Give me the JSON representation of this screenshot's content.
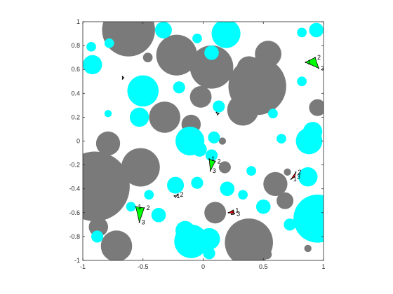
{
  "chart_data": {
    "type": "scatter",
    "title": "",
    "xlabel": "",
    "ylabel": "",
    "xlim": [
      -1,
      1
    ],
    "ylim": [
      -1,
      1
    ],
    "xticks": [
      -1,
      -0.5,
      0,
      0.5,
      1
    ],
    "yticks": [
      -1,
      -0.8,
      -0.6,
      -0.4,
      -0.2,
      0,
      0.2,
      0.4,
      0.6,
      0.8,
      1
    ],
    "xtick_labels": [
      "-1",
      "-0.5",
      "0",
      "0.5",
      "1"
    ],
    "ytick_labels": [
      "-1",
      "-0.8",
      "-0.6",
      "-0.4",
      "-0.2",
      "0",
      "0.2",
      "0.4",
      "0.6",
      "0.8",
      "1"
    ],
    "grid": false,
    "colors": {
      "gray_disk": "#7a7a7a",
      "cyan_disk": "#00ffff",
      "green_triangle": "#00ff00",
      "red_triangle": "#ff0000",
      "axis": "#262626"
    },
    "series": [
      {
        "marker": "gray-disk",
        "points": [
          {
            "x": -0.62,
            "y": 0.93,
            "r": 0.22
          },
          {
            "x": -0.22,
            "y": 0.72,
            "r": 0.17
          },
          {
            "x": 0.07,
            "y": 0.62,
            "r": 0.18
          },
          {
            "x": 0.45,
            "y": 0.46,
            "r": 0.24
          },
          {
            "x": 0.54,
            "y": 0.73,
            "r": 0.11
          },
          {
            "x": 0.38,
            "y": 0.61,
            "r": 0.1
          },
          {
            "x": 0.33,
            "y": 0.26,
            "r": 0.13
          },
          {
            "x": -0.32,
            "y": 0.2,
            "r": 0.13
          },
          {
            "x": -0.1,
            "y": 0.14,
            "r": 0.08
          },
          {
            "x": -0.02,
            "y": 0.37,
            "r": 0.09
          },
          {
            "x": -0.52,
            "y": -0.22,
            "r": 0.16
          },
          {
            "x": -0.9,
            "y": -0.38,
            "r": 0.29
          },
          {
            "x": -0.79,
            "y": -0.02,
            "r": 0.1
          },
          {
            "x": -0.87,
            "y": -0.72,
            "r": 0.08
          },
          {
            "x": -0.72,
            "y": -0.88,
            "r": 0.13
          },
          {
            "x": 0.1,
            "y": -0.6,
            "r": 0.09
          },
          {
            "x": 0.38,
            "y": -0.85,
            "r": 0.2
          },
          {
            "x": 0.6,
            "y": -0.36,
            "r": 0.1
          },
          {
            "x": 0.68,
            "y": -0.5,
            "r": 0.07
          },
          {
            "x": 0.18,
            "y": -0.22,
            "r": 0.05
          },
          {
            "x": 0.95,
            "y": 0.28,
            "r": 0.07
          },
          {
            "x": -0.46,
            "y": 0.7,
            "r": 0.04
          },
          {
            "x": 0.16,
            "y": 0.0,
            "r": 0.03
          },
          {
            "x": 0.7,
            "y": -0.26,
            "r": 0.03
          },
          {
            "x": 0.53,
            "y": -0.95,
            "r": 0.04
          },
          {
            "x": 0.87,
            "y": -0.9,
            "r": 0.03
          }
        ]
      },
      {
        "marker": "cyan-disk",
        "points": [
          {
            "x": -0.5,
            "y": 0.42,
            "r": 0.13
          },
          {
            "x": 0.19,
            "y": 0.9,
            "r": 0.12
          },
          {
            "x": 0.07,
            "y": 0.74,
            "r": 0.06
          },
          {
            "x": -0.92,
            "y": 0.64,
            "r": 0.08
          },
          {
            "x": -0.33,
            "y": 0.93,
            "r": 0.07
          },
          {
            "x": -0.05,
            "y": 0.86,
            "r": 0.04
          },
          {
            "x": 0.94,
            "y": 0.93,
            "r": 0.06
          },
          {
            "x": 0.82,
            "y": 0.91,
            "r": 0.04
          },
          {
            "x": -0.78,
            "y": 0.82,
            "r": 0.04
          },
          {
            "x": -0.53,
            "y": 0.2,
            "r": 0.08
          },
          {
            "x": -0.11,
            "y": 0.0,
            "r": 0.12
          },
          {
            "x": 0.13,
            "y": 0.29,
            "r": 0.05
          },
          {
            "x": -0.03,
            "y": -0.07,
            "r": 0.06
          },
          {
            "x": 0.07,
            "y": -0.12,
            "r": 0.05
          },
          {
            "x": 0.09,
            "y": 0.03,
            "r": 0.05
          },
          {
            "x": -0.23,
            "y": -0.37,
            "r": 0.07
          },
          {
            "x": -0.05,
            "y": -0.35,
            "r": 0.05
          },
          {
            "x": 0.2,
            "y": -0.4,
            "r": 0.06
          },
          {
            "x": 0.5,
            "y": -0.55,
            "r": 0.06
          },
          {
            "x": -0.15,
            "y": -0.75,
            "r": 0.08
          },
          {
            "x": -0.1,
            "y": -0.84,
            "r": 0.14
          },
          {
            "x": 0.05,
            "y": -0.82,
            "r": 0.09
          },
          {
            "x": 0.95,
            "y": -0.65,
            "r": 0.2
          },
          {
            "x": 0.88,
            "y": 0.0,
            "r": 0.11
          },
          {
            "x": 0.91,
            "y": 0.08,
            "r": 0.08
          },
          {
            "x": 0.65,
            "y": 0.02,
            "r": 0.04
          },
          {
            "x": 0.58,
            "y": 0.23,
            "r": 0.04
          },
          {
            "x": 0.87,
            "y": -0.3,
            "r": 0.08
          },
          {
            "x": -0.37,
            "y": -0.62,
            "r": 0.06
          },
          {
            "x": -0.45,
            "y": -0.45,
            "r": 0.04
          },
          {
            "x": -0.6,
            "y": -0.55,
            "r": 0.04
          },
          {
            "x": -0.88,
            "y": -0.8,
            "r": 0.05
          },
          {
            "x": 0.05,
            "y": -0.94,
            "r": 0.05
          },
          {
            "x": 0.33,
            "y": -0.45,
            "r": 0.04
          },
          {
            "x": -0.93,
            "y": 0.79,
            "r": 0.04
          },
          {
            "x": 0.82,
            "y": 0.5,
            "r": 0.04
          },
          {
            "x": -0.2,
            "y": 0.45,
            "r": 0.05
          },
          {
            "x": 0.4,
            "y": -0.25,
            "r": 0.04
          },
          {
            "x": -0.79,
            "y": 0.23,
            "r": 0.03
          },
          {
            "x": 0.72,
            "y": -0.7,
            "r": 0.05
          }
        ]
      },
      {
        "marker": "green-triangle",
        "triangles": [
          {
            "vertices": [
              [
                0.85,
                0.66
              ],
              [
                0.93,
                0.7
              ],
              [
                0.96,
                0.61
              ]
            ],
            "labels": [
              "1",
              "2",
              "3"
            ]
          },
          {
            "vertices": [
              [
                0.05,
                -0.15
              ],
              [
                0.1,
                -0.17
              ],
              [
                0.06,
                -0.25
              ]
            ],
            "labels": [
              "1",
              "2",
              "3"
            ]
          },
          {
            "vertices": [
              [
                -0.56,
                -0.55
              ],
              [
                -0.49,
                -0.56
              ],
              [
                -0.53,
                -0.68
              ]
            ],
            "labels": [
              "1",
              "2",
              "3"
            ]
          }
        ]
      },
      {
        "marker": "red-triangle",
        "triangles": [
          {
            "vertices": [
              [
                0.73,
                -0.32
              ],
              [
                0.77,
                -0.26
              ],
              [
                0.76,
                -0.3
              ]
            ],
            "labels": [
              "1",
              "2",
              "3"
            ]
          },
          {
            "vertices": [
              [
                0.25,
                -0.58
              ],
              [
                0.21,
                -0.6
              ],
              [
                0.26,
                -0.61
              ]
            ],
            "labels": [
              "1",
              "2",
              "3"
            ]
          }
        ]
      },
      {
        "marker": "small-black-triangle",
        "triangles": [
          {
            "vertices": [
              [
                -0.67,
                0.54
              ],
              [
                -0.66,
                0.53
              ],
              [
                -0.67,
                0.52
              ]
            ],
            "labels": [
              "",
              "",
              ""
            ]
          },
          {
            "vertices": [
              [
                0.11,
                0.24
              ],
              [
                0.13,
                0.23
              ],
              [
                0.12,
                0.22
              ]
            ],
            "labels": [
              "",
              "",
              ""
            ]
          },
          {
            "vertices": [
              [
                -0.24,
                -0.46
              ],
              [
                -0.21,
                -0.45
              ],
              [
                -0.23,
                -0.47
              ]
            ],
            "labels": [
              "1",
              "2",
              ""
            ]
          }
        ]
      }
    ]
  }
}
